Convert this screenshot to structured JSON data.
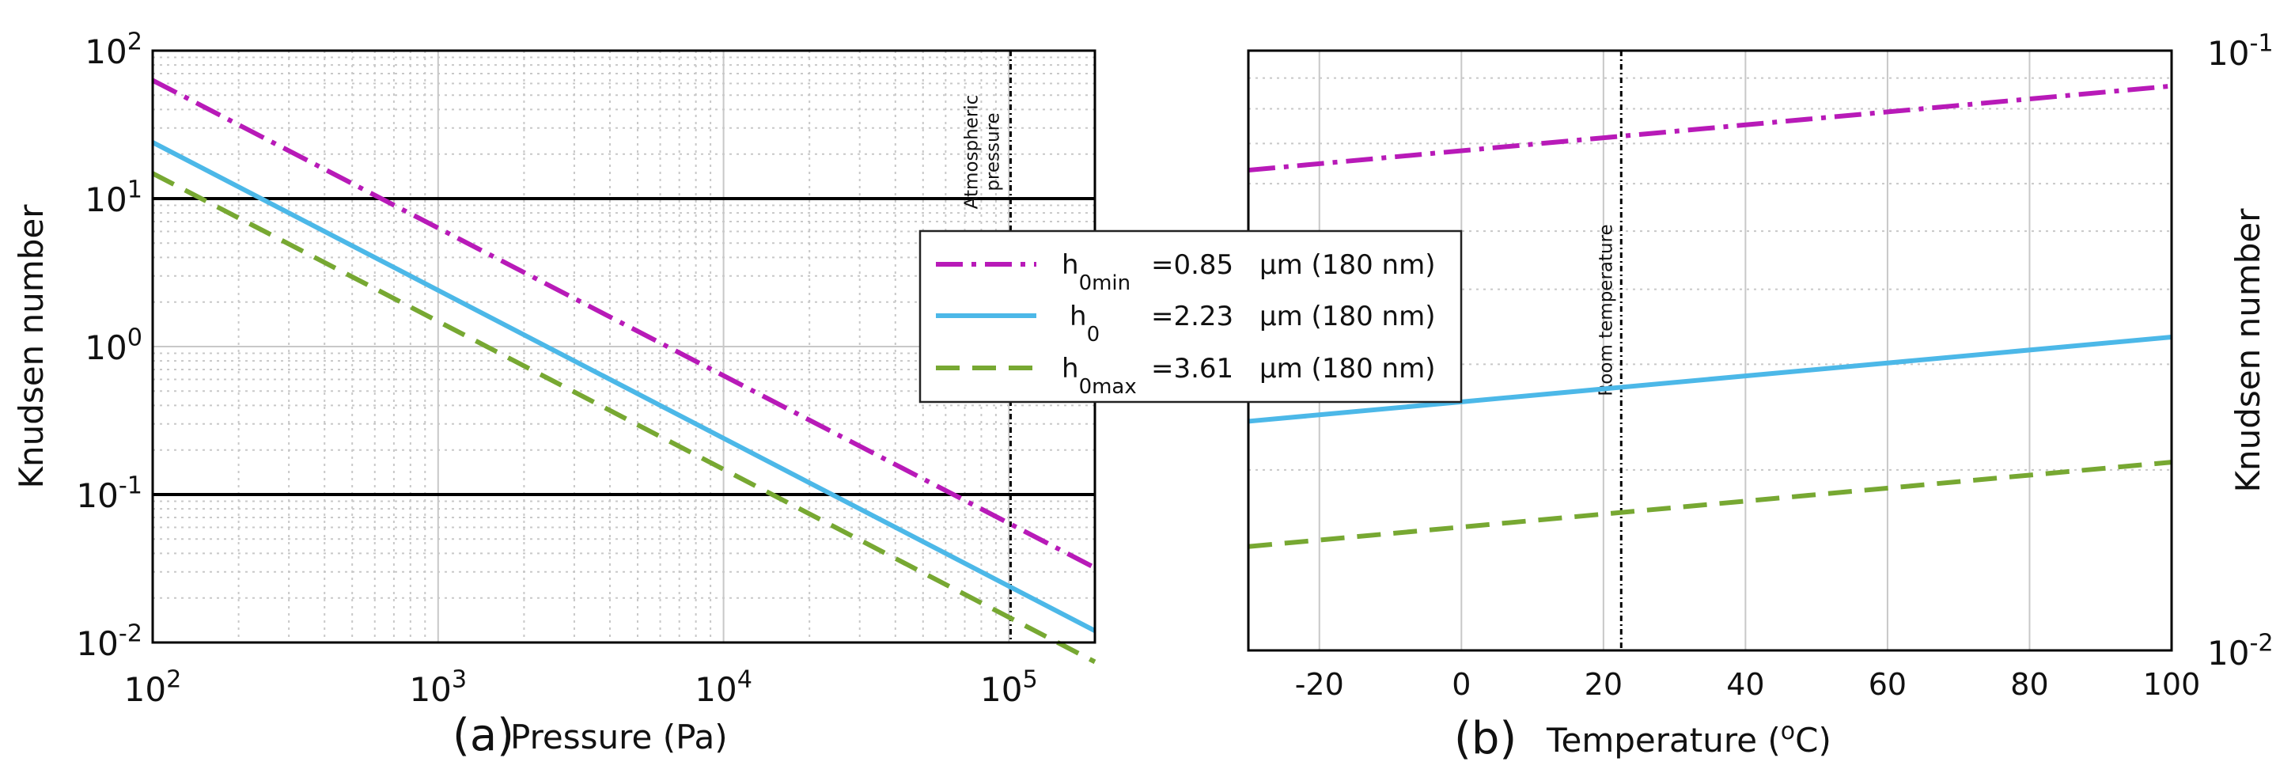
{
  "colors": {
    "min_series": "#B81AB8",
    "nominal_series": "#4CB8E8",
    "max_series": "#77A832",
    "reference_line": "#000000",
    "grid": "#c8c8c8"
  },
  "legend": {
    "rows": [
      {
        "symbol": "h",
        "subscript": "0min",
        "value": "=0.85",
        "unit": "μm (180 nm)"
      },
      {
        "symbol": "h",
        "subscript": "0",
        "value": "=2.23",
        "unit": "μm (180 nm)"
      },
      {
        "symbol": "h",
        "subscript": "0max",
        "value": "=3.61",
        "unit": "μm (180 nm)"
      }
    ]
  },
  "chart_data": [
    {
      "panel": "(a)",
      "type": "line",
      "xscale": "log",
      "yscale": "log",
      "xlabel": "Pressure (Pa)",
      "ylabel": "Knudsen number",
      "xlim": [
        100,
        200000
      ],
      "ylim": [
        0.01,
        100
      ],
      "x_ticks": [
        {
          "value": 100,
          "base": "10",
          "exp": "2"
        },
        {
          "value": 1000,
          "base": "10",
          "exp": "3"
        },
        {
          "value": 10000,
          "base": "10",
          "exp": "4"
        },
        {
          "value": 100000,
          "base": "10",
          "exp": "5"
        }
      ],
      "y_ticks": [
        {
          "value": 100,
          "base": "10",
          "exp": "2"
        },
        {
          "value": 10,
          "base": "10",
          "exp": "1"
        },
        {
          "value": 1,
          "base": "10",
          "exp": "0"
        },
        {
          "value": 0.1,
          "base": "10",
          "exp": "-1"
        },
        {
          "value": 0.01,
          "base": "10",
          "exp": "-2"
        }
      ],
      "hlines": [
        10,
        0.1
      ],
      "vline": {
        "x": 101325,
        "label_lines": [
          "Atmospheric",
          "pressure"
        ]
      },
      "series": [
        {
          "name": "h0min = 0.85 μm",
          "style": "dashdot",
          "color_key": "min_series",
          "x": [
            100,
            200000
          ],
          "y": [
            63,
            0.032
          ]
        },
        {
          "name": "h0 = 2.23 μm",
          "style": "solid",
          "color_key": "nominal_series",
          "x": [
            100,
            200000
          ],
          "y": [
            24,
            0.012
          ]
        },
        {
          "name": "h0max = 3.61 μm",
          "style": "dashed",
          "color_key": "max_series",
          "x": [
            100,
            200000
          ],
          "y": [
            14.8,
            0.0074
          ]
        }
      ]
    },
    {
      "panel": "(b)",
      "type": "line",
      "xscale": "linear",
      "yscale": "log",
      "xlabel_text": "Temperature (",
      "xlabel_sup": "o",
      "xlabel_tail": "C)",
      "ylabel": "Knudsen number",
      "yaxis_position": "right",
      "xlim": [
        -30,
        100
      ],
      "ylim": [
        0.01,
        0.1
      ],
      "x_ticks": [
        -20,
        0,
        20,
        40,
        60,
        80,
        100
      ],
      "y_ticks": [
        {
          "value": 0.1,
          "base": "10",
          "exp": "-1"
        },
        {
          "value": 0.01,
          "base": "10",
          "exp": "-2"
        }
      ],
      "vline": {
        "x": 22.5,
        "label": "Room temperature"
      },
      "series": [
        {
          "name": "h0min = 0.85 μm",
          "style": "dashdot",
          "color_key": "min_series",
          "x": [
            -30,
            100
          ],
          "y": [
            0.0632,
            0.0873
          ]
        },
        {
          "name": "h0 = 2.23 μm",
          "style": "solid",
          "color_key": "nominal_series",
          "x": [
            -30,
            100
          ],
          "y": [
            0.0241,
            0.0333
          ]
        },
        {
          "name": "h0max = 3.61 μm",
          "style": "dashed",
          "color_key": "max_series",
          "x": [
            -30,
            100
          ],
          "y": [
            0.0149,
            0.0206
          ]
        }
      ]
    }
  ]
}
